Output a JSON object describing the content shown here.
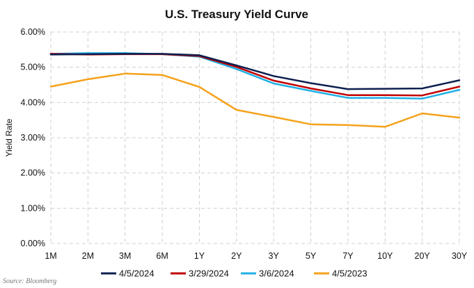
{
  "chart_data": {
    "type": "line",
    "title": "U.S. Treasury Yield Curve",
    "xlabel": "",
    "ylabel": "Yield Rate",
    "ylim": [
      0,
      6
    ],
    "yticks": [
      "0.00%",
      "1.00%",
      "2.00%",
      "3.00%",
      "4.00%",
      "5.00%",
      "6.00%"
    ],
    "categories": [
      "1M",
      "2M",
      "3M",
      "6M",
      "1Y",
      "2Y",
      "3Y",
      "5Y",
      "7Y",
      "10Y",
      "20Y",
      "30Y"
    ],
    "grid": true,
    "legend_position": "bottom",
    "series": [
      {
        "name": "4/5/2024",
        "color": "#0d1f4f",
        "values": [
          5.36,
          5.37,
          5.38,
          5.38,
          5.34,
          5.05,
          4.75,
          4.55,
          4.38,
          4.39,
          4.4,
          4.63
        ]
      },
      {
        "name": "3/29/2024",
        "color": "#c00000",
        "values": [
          5.38,
          5.36,
          5.37,
          5.37,
          5.32,
          5.01,
          4.62,
          4.4,
          4.21,
          4.21,
          4.2,
          4.45
        ]
      },
      {
        "name": "3/6/2024",
        "color": "#1fb0e6",
        "values": [
          5.38,
          5.4,
          5.4,
          5.37,
          5.3,
          4.95,
          4.54,
          4.33,
          4.13,
          4.13,
          4.11,
          4.36
        ]
      },
      {
        "name": "4/5/2023",
        "color": "#f5a21b",
        "values": [
          4.45,
          4.66,
          4.82,
          4.78,
          4.44,
          3.79,
          3.59,
          3.38,
          3.36,
          3.31,
          3.69,
          3.57
        ]
      }
    ]
  },
  "source_note": "Source: Bloomberg"
}
